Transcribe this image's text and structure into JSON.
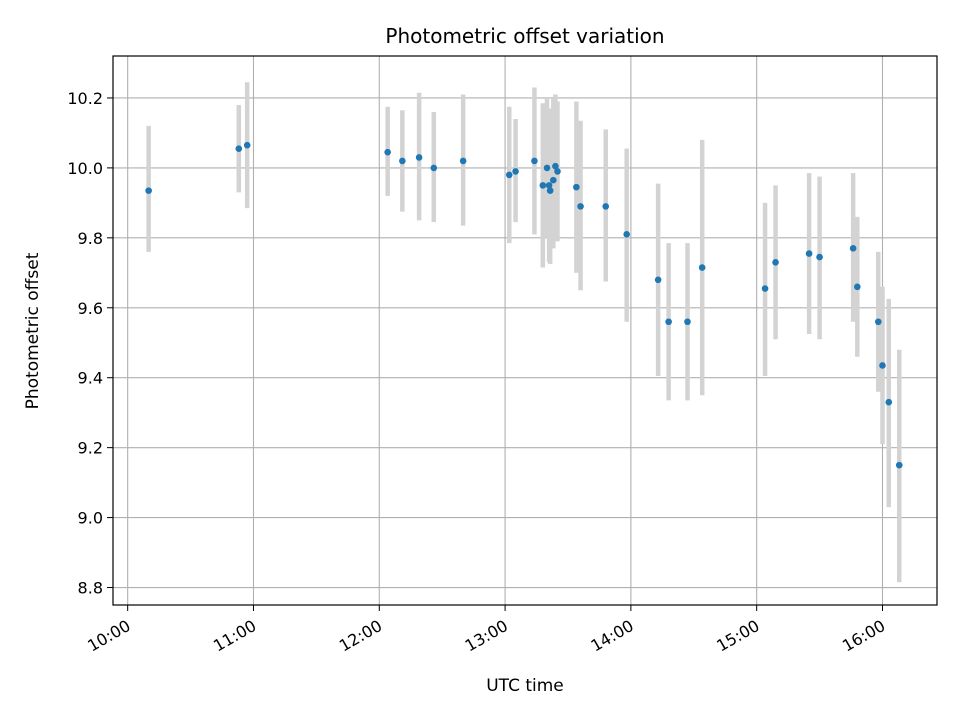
{
  "chart_data": {
    "type": "scatter",
    "title": "Photometric offset variation",
    "xlabel": "UTC time",
    "ylabel": "Photometric offset",
    "x_ticks": [
      "10:00",
      "11:00",
      "12:00",
      "13:00",
      "14:00",
      "15:00",
      "16:00"
    ],
    "y_ticks": [
      "8.8",
      "9.0",
      "9.2",
      "9.4",
      "9.6",
      "9.8",
      "10.0",
      "10.2"
    ],
    "xlim": [
      "09:53",
      "16:26"
    ],
    "ylim": [
      8.75,
      10.32
    ],
    "grid": true,
    "point_color": "#1f77b4",
    "errorbar_color": "#d3d3d3",
    "points": [
      {
        "x": "10:10",
        "y": 9.935,
        "ylow": 9.76,
        "yhigh": 10.12
      },
      {
        "x": "10:53",
        "y": 10.055,
        "ylow": 9.93,
        "yhigh": 10.18
      },
      {
        "x": "10:57",
        "y": 10.065,
        "ylow": 9.885,
        "yhigh": 10.245
      },
      {
        "x": "12:04",
        "y": 10.045,
        "ylow": 9.92,
        "yhigh": 10.175
      },
      {
        "x": "12:11",
        "y": 10.02,
        "ylow": 9.875,
        "yhigh": 10.165
      },
      {
        "x": "12:19",
        "y": 10.03,
        "ylow": 9.85,
        "yhigh": 10.215
      },
      {
        "x": "12:26",
        "y": 10.0,
        "ylow": 9.845,
        "yhigh": 10.16
      },
      {
        "x": "12:40",
        "y": 10.02,
        "ylow": 9.835,
        "yhigh": 10.21
      },
      {
        "x": "13:02",
        "y": 9.98,
        "ylow": 9.785,
        "yhigh": 10.175
      },
      {
        "x": "13:05",
        "y": 9.99,
        "ylow": 9.845,
        "yhigh": 10.14
      },
      {
        "x": "13:14",
        "y": 10.02,
        "ylow": 9.81,
        "yhigh": 10.23
      },
      {
        "x": "13:18",
        "y": 9.95,
        "ylow": 9.715,
        "yhigh": 10.185
      },
      {
        "x": "13:20",
        "y": 10.0,
        "ylow": 9.8,
        "yhigh": 10.2
      },
      {
        "x": "13:21",
        "y": 9.95,
        "ylow": 9.73,
        "yhigh": 10.17
      },
      {
        "x": "13:21.5",
        "y": 9.935,
        "ylow": 9.725,
        "yhigh": 10.15
      },
      {
        "x": "13:23",
        "y": 9.965,
        "ylow": 9.77,
        "yhigh": 10.2
      },
      {
        "x": "13:24",
        "y": 10.005,
        "ylow": 9.815,
        "yhigh": 10.21
      },
      {
        "x": "13:25",
        "y": 9.99,
        "ylow": 9.79,
        "yhigh": 10.19
      },
      {
        "x": "13:34",
        "y": 9.945,
        "ylow": 9.7,
        "yhigh": 10.19
      },
      {
        "x": "13:36",
        "y": 9.89,
        "ylow": 9.65,
        "yhigh": 10.135
      },
      {
        "x": "13:48",
        "y": 9.89,
        "ylow": 9.675,
        "yhigh": 10.11
      },
      {
        "x": "13:58",
        "y": 9.81,
        "ylow": 9.56,
        "yhigh": 10.055
      },
      {
        "x": "14:13",
        "y": 9.68,
        "ylow": 9.405,
        "yhigh": 9.955
      },
      {
        "x": "14:18",
        "y": 9.56,
        "ylow": 9.335,
        "yhigh": 9.785
      },
      {
        "x": "14:27",
        "y": 9.56,
        "ylow": 9.335,
        "yhigh": 9.785
      },
      {
        "x": "14:34",
        "y": 9.715,
        "ylow": 9.35,
        "yhigh": 10.08
      },
      {
        "x": "15:04",
        "y": 9.655,
        "ylow": 9.405,
        "yhigh": 9.9
      },
      {
        "x": "15:09",
        "y": 9.73,
        "ylow": 9.51,
        "yhigh": 9.95
      },
      {
        "x": "15:25",
        "y": 9.755,
        "ylow": 9.525,
        "yhigh": 9.985
      },
      {
        "x": "15:30",
        "y": 9.745,
        "ylow": 9.51,
        "yhigh": 9.975
      },
      {
        "x": "15:46",
        "y": 9.77,
        "ylow": 9.56,
        "yhigh": 9.985
      },
      {
        "x": "15:48",
        "y": 9.66,
        "ylow": 9.46,
        "yhigh": 9.86
      },
      {
        "x": "15:58",
        "y": 9.56,
        "ylow": 9.36,
        "yhigh": 9.76
      },
      {
        "x": "16:00",
        "y": 9.435,
        "ylow": 9.21,
        "yhigh": 9.66
      },
      {
        "x": "16:03",
        "y": 9.33,
        "ylow": 9.03,
        "yhigh": 9.625
      },
      {
        "x": "16:08",
        "y": 9.15,
        "ylow": 8.815,
        "yhigh": 9.48
      }
    ]
  }
}
